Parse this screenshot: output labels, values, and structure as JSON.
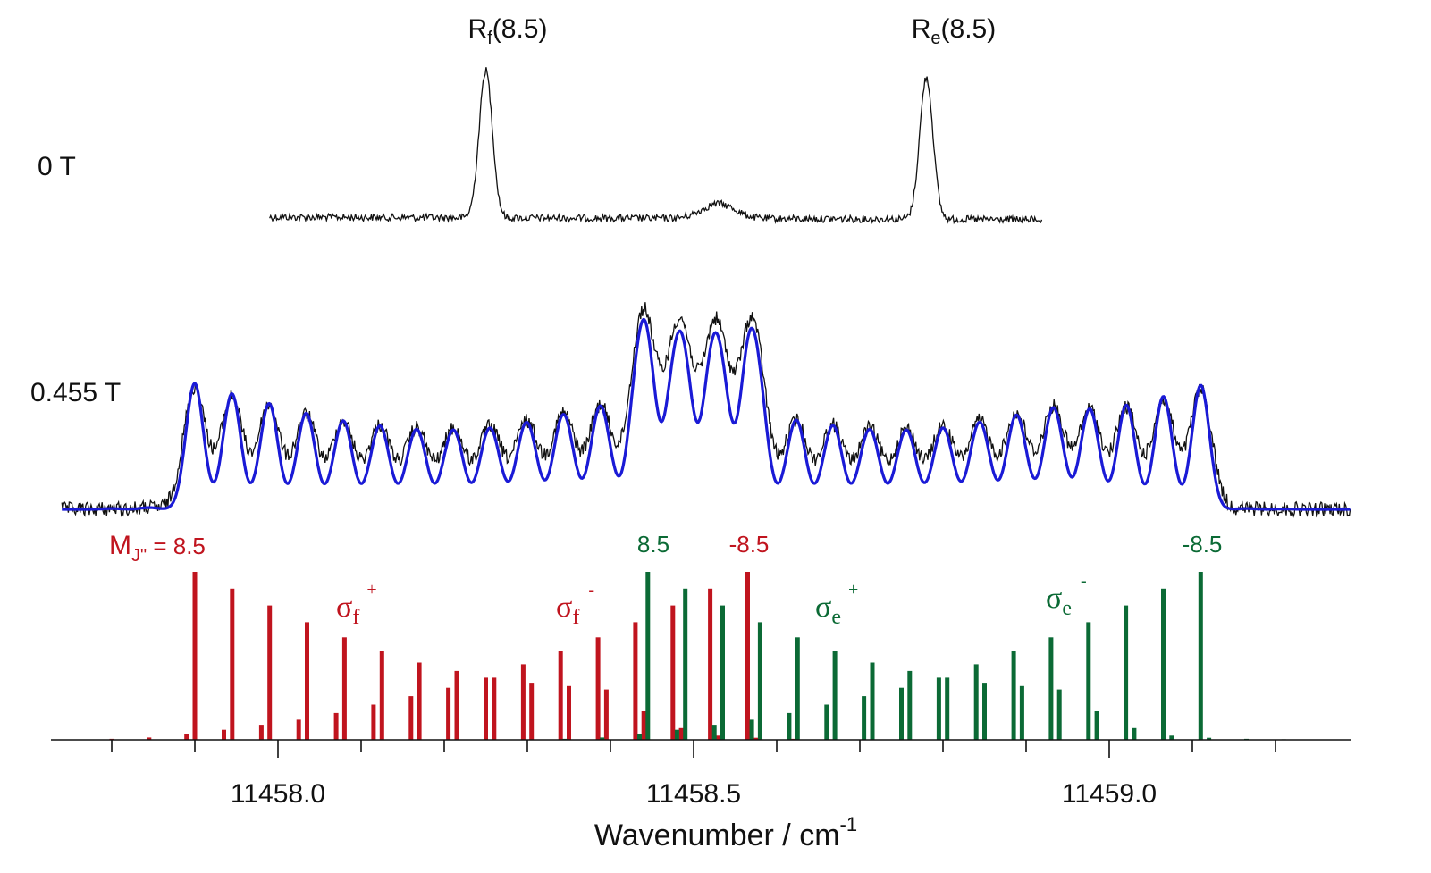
{
  "chart_data": {
    "type": "line",
    "title": "",
    "xlabel": "Wavenumber / cm",
    "xlabel_sup": "-1",
    "xlim": [
      11457.74,
      11459.29
    ],
    "xticks_major": [
      11458.0,
      11458.5,
      11459.0
    ],
    "xtick_labels": [
      "11458.0",
      "11458.5",
      "11459.0"
    ],
    "xticks_minor_step": 0.1,
    "traces": {
      "zero_field": {
        "label": "0 T",
        "x_range": [
          11457.99,
          11458.92
        ],
        "peaks": [
          {
            "name": "Rf(8.5)",
            "position": 11458.25,
            "width": 0.008,
            "height": 1.0
          },
          {
            "name": "Re(8.5)",
            "position": 11458.78,
            "width": 0.008,
            "height": 0.96
          },
          {
            "name": "",
            "position": 11458.53,
            "width": 0.02,
            "height": 0.1
          }
        ]
      },
      "field_0455": {
        "label": "0.455 T",
        "x_range": [
          11457.74,
          11459.29
        ],
        "series": [
          {
            "name": "experiment",
            "color": "#111111"
          },
          {
            "name": "simulation",
            "color": "#1a1ad6"
          }
        ]
      }
    },
    "peak_labels": [
      {
        "base": "R",
        "sub": "f",
        "rest": "(8.5)",
        "x": 11458.25
      },
      {
        "base": "R",
        "sub": "e",
        "rest": "(8.5)",
        "x": 11458.78
      }
    ],
    "sticks": {
      "sigma_f_plus": {
        "color": "#c0141e",
        "positions": [
          11457.9,
          11457.945,
          11457.99,
          11458.035,
          11458.08,
          11458.125,
          11458.17,
          11458.215,
          11458.26,
          11458.305,
          11458.35,
          11458.395,
          11458.44,
          11458.485,
          11458.53,
          11458.575,
          11458.62,
          11458.665
        ],
        "heights": [
          1.0,
          0.9,
          0.8,
          0.7,
          0.61,
          0.53,
          0.46,
          0.41,
          0.37,
          0.34,
          0.32,
          0.3,
          0.17,
          0.07,
          0.025,
          0.012,
          0.006,
          0.003
        ]
      },
      "sigma_f_minus": {
        "color": "#c0141e",
        "positions": [
          11457.8,
          11457.845,
          11457.89,
          11457.935,
          11457.98,
          11458.025,
          11458.07,
          11458.115,
          11458.16,
          11458.205,
          11458.25,
          11458.295,
          11458.34,
          11458.385,
          11458.43,
          11458.475,
          11458.52,
          11458.565
        ],
        "heights": [
          0.006,
          0.014,
          0.035,
          0.06,
          0.09,
          0.12,
          0.16,
          0.21,
          0.26,
          0.31,
          0.37,
          0.45,
          0.53,
          0.61,
          0.7,
          0.8,
          0.9,
          1.0
        ]
      },
      "sigma_e_plus": {
        "color": "#0b6a35",
        "positions": [
          11458.445,
          11458.49,
          11458.535,
          11458.58,
          11458.625,
          11458.67,
          11458.715,
          11458.76,
          11458.805,
          11458.85,
          11458.895,
          11458.94,
          11458.985,
          11459.03,
          11459.075,
          11459.12,
          11459.165,
          11459.21
        ],
        "heights": [
          1.0,
          0.9,
          0.8,
          0.7,
          0.61,
          0.53,
          0.46,
          0.41,
          0.37,
          0.34,
          0.32,
          0.3,
          0.17,
          0.07,
          0.025,
          0.012,
          0.006,
          0.003
        ]
      },
      "sigma_e_minus": {
        "color": "#0b6a35",
        "positions": [
          11458.345,
          11458.39,
          11458.435,
          11458.48,
          11458.525,
          11458.57,
          11458.615,
          11458.66,
          11458.705,
          11458.75,
          11458.795,
          11458.84,
          11458.885,
          11458.93,
          11458.975,
          11459.02,
          11459.065,
          11459.11
        ],
        "heights": [
          0.006,
          0.014,
          0.035,
          0.06,
          0.09,
          0.12,
          0.16,
          0.21,
          0.26,
          0.31,
          0.37,
          0.45,
          0.53,
          0.61,
          0.7,
          0.8,
          0.9,
          1.0
        ]
      }
    },
    "annotations": {
      "zero_field_label": "0 T",
      "field_label": "0.455 T",
      "mj_label": {
        "main": "M",
        "sub": "J\"",
        "rest": " = 8.5"
      },
      "red_minus": "-8.5",
      "green_plus": "8.5",
      "green_minus": "-8.5",
      "sigma_symbol": "σ",
      "sigma_f_plus": {
        "sub": "f",
        "sup": "+"
      },
      "sigma_f_minus": {
        "sub": "f",
        "sup": "-"
      },
      "sigma_e_plus": {
        "sub": "e",
        "sup": "+"
      },
      "sigma_e_minus": {
        "sub": "e",
        "sup": "-"
      }
    },
    "colors": {
      "red": "#c0141e",
      "green": "#0b6a35",
      "blue": "#1a1ad6",
      "black": "#111111"
    }
  }
}
